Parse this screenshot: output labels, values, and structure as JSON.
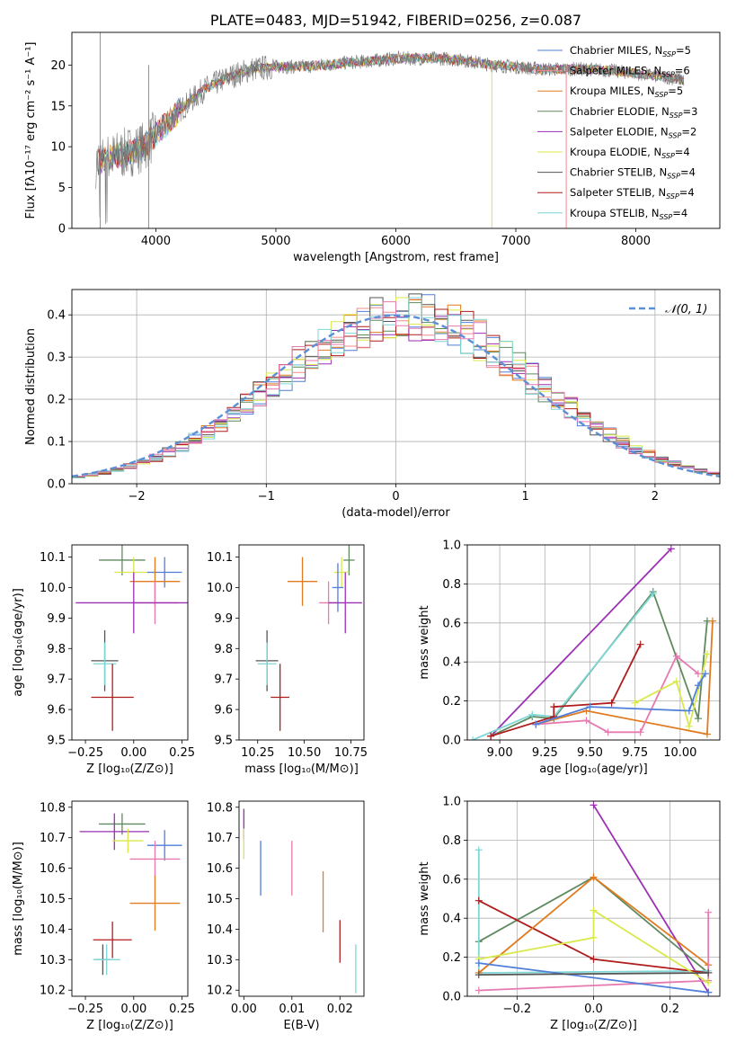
{
  "colors": {
    "chabrier_miles": "#4f7fd9",
    "salpeter_miles": "#ef8b8b",
    "kroupa_miles": "#e07b1f",
    "chabrier_elodie": "#5f8a5f",
    "salpeter_elodie": "#9b30b5",
    "kroupa_elodie": "#d9e84a",
    "chabrier_stelib": "#555555",
    "salpeter_stelib": "#b01c1c",
    "kroupa_stelib": "#7fd6d6",
    "pink": "#e67ab0",
    "normal_curve": "#5b8fd6",
    "grid": "#b0b0b0"
  },
  "chart_data": [
    {
      "id": "spectrum",
      "type": "line",
      "title": "PLATE=0483, MJD=51942, FIBERID=0256, z=0.087",
      "xlabel": "wavelength [Angstrom, rest frame]",
      "ylabel": "Flux [fλ10⁻¹⁷ erg cm⁻² s⁻¹ A⁻¹]",
      "xlim": [
        3300,
        8700
      ],
      "ylim": [
        0,
        24
      ],
      "xticks": [
        "4000",
        "5000",
        "6000",
        "7000",
        "8000"
      ],
      "yticks": [
        "0",
        "5",
        "10",
        "15",
        "20"
      ],
      "grid": false,
      "legend_position": "top-right",
      "legend": [
        {
          "label": "Chabrier MILES, N",
          "sub": "SSP",
          "tail": "=5",
          "color": "#4f7fd9"
        },
        {
          "label": "Salpeter MILES, N",
          "sub": "SSP",
          "tail": "=6",
          "color": "#ef8b8b"
        },
        {
          "label": "Kroupa MILES, N",
          "sub": "SSP",
          "tail": "=5",
          "color": "#e07b1f"
        },
        {
          "label": "Chabrier ELODIE, N",
          "sub": "SSP",
          "tail": "=3",
          "color": "#5f8a5f"
        },
        {
          "label": "Salpeter ELODIE, N",
          "sub": "SSP",
          "tail": "=2",
          "color": "#9b30b5"
        },
        {
          "label": "Kroupa ELODIE, N",
          "sub": "SSP",
          "tail": "=4",
          "color": "#d9e84a"
        },
        {
          "label": "Chabrier STELIB, N",
          "sub": "SSP",
          "tail": "=4",
          "color": "#555555"
        },
        {
          "label": "Salpeter STELIB, N",
          "sub": "SSP",
          "tail": "=4",
          "color": "#b01c1c"
        },
        {
          "label": "Kroupa STELIB, N",
          "sub": "SSP",
          "tail": "=4",
          "color": "#7fd6d6"
        }
      ],
      "continuum": {
        "x": [
          3500,
          3700,
          3900,
          4000,
          4100,
          4200,
          4400,
          4600,
          4800,
          5000,
          5200,
          5400,
          5600,
          5800,
          6000,
          6200,
          6400,
          6600,
          6800,
          7000,
          7200,
          7400,
          7600,
          7800,
          8000,
          8200,
          8400
        ],
        "y": [
          8,
          9,
          10,
          11.5,
          13,
          14.5,
          17,
          18.5,
          19.5,
          19.8,
          19.8,
          20,
          20.3,
          20.5,
          20.8,
          20.8,
          20.8,
          20.5,
          20,
          19.8,
          19.5,
          19.5,
          19.5,
          19.3,
          19,
          18.6,
          18.2
        ]
      },
      "spikes": [
        {
          "x": 3940,
          "color": "#e07b1f"
        },
        {
          "x": 6800,
          "color": "#d9e84a"
        },
        {
          "x": 7420,
          "color": "#ef8b8b"
        }
      ]
    },
    {
      "id": "residuals",
      "type": "histogram",
      "xlabel": "(data-model)/error",
      "ylabel": "Normed distribution",
      "xlim": [
        -2.5,
        2.5
      ],
      "ylim": [
        0,
        0.46
      ],
      "xticks": [
        "−2",
        "−1",
        "0",
        "1",
        "2"
      ],
      "yticks": [
        "0.0",
        "0.1",
        "0.2",
        "0.3",
        "0.4"
      ],
      "grid": true,
      "legend_position": "top-right",
      "legend": [
        {
          "label": "𝒩(0, 1)",
          "color": "#5b8fd6"
        }
      ],
      "bin_width": 0.1
    },
    {
      "id": "age_vs_Z",
      "type": "scatter",
      "xlabel": "Z [log₁₀(Z/Z⊙)]",
      "ylabel": "age  [log₁₀(age/yr)]",
      "xlim": [
        -0.32,
        0.28
      ],
      "ylim": [
        9.5,
        10.14
      ],
      "xticks": [
        "−0.25",
        "0.00",
        "0.25"
      ],
      "yticks": [
        "9.5",
        "9.6",
        "9.7",
        "9.8",
        "9.9",
        "10.0",
        "10.1"
      ],
      "points": [
        {
          "x": -0.06,
          "xerr": 0.12,
          "y": 10.09,
          "yerr": 0.05,
          "color": "#5f8a5f"
        },
        {
          "x": 0.0,
          "xerr": 0.1,
          "y": 10.05,
          "yerr": 0.05,
          "color": "#d9e84a"
        },
        {
          "x": 0.16,
          "xerr": 0.09,
          "y": 10.05,
          "yerr": 0.05,
          "color": "#4f7fd9"
        },
        {
          "x": 0.11,
          "xerr": 0.13,
          "y": 10.02,
          "yerr": 0.08,
          "color": "#e07b1f"
        },
        {
          "x": 0.11,
          "xerr": 0.12,
          "y": 9.95,
          "yerr": 0.07,
          "color": "#e67ab0"
        },
        {
          "x": -0.0,
          "xerr": 0.3,
          "y": 9.95,
          "yerr": 0.1,
          "color": "#9b30b5"
        },
        {
          "x": -0.15,
          "xerr": 0.07,
          "y": 9.76,
          "yerr": 0.1,
          "color": "#555555"
        },
        {
          "x": -0.15,
          "xerr": 0.06,
          "y": 9.75,
          "yerr": 0.07,
          "color": "#7fd6d6"
        },
        {
          "x": -0.11,
          "xerr": 0.11,
          "y": 9.64,
          "yerr": 0.11,
          "color": "#b01c1c"
        }
      ]
    },
    {
      "id": "age_vs_mass",
      "type": "scatter",
      "xlabel": "mass [log₁₀(M/M⊙)]",
      "xlim": [
        10.15,
        10.82
      ],
      "ylim": [
        9.5,
        10.14
      ],
      "xticks": [
        "10.25",
        "10.50",
        "10.75"
      ],
      "yticks": [
        "9.5",
        "9.6",
        "9.7",
        "9.8",
        "9.9",
        "10.0",
        "10.1"
      ],
      "points": [
        {
          "x": 10.74,
          "xerr": 0.03,
          "y": 10.09,
          "yerr": 0.05,
          "color": "#5f8a5f"
        },
        {
          "x": 10.7,
          "xerr": 0.04,
          "y": 10.05,
          "yerr": 0.05,
          "color": "#d9e84a"
        },
        {
          "x": 10.68,
          "xerr": 0.03,
          "y": 10.0,
          "yerr": 0.08,
          "color": "#4f7fd9"
        },
        {
          "x": 10.49,
          "xerr": 0.08,
          "y": 10.02,
          "yerr": 0.08,
          "color": "#e07b1f"
        },
        {
          "x": 10.63,
          "xerr": 0.05,
          "y": 9.95,
          "yerr": 0.07,
          "color": "#e67ab0"
        },
        {
          "x": 10.72,
          "xerr": 0.09,
          "y": 9.95,
          "yerr": 0.1,
          "color": "#9b30b5"
        },
        {
          "x": 10.3,
          "xerr": 0.06,
          "y": 9.76,
          "yerr": 0.1,
          "color": "#555555"
        },
        {
          "x": 10.3,
          "xerr": 0.05,
          "y": 9.75,
          "yerr": 0.07,
          "color": "#7fd6d6"
        },
        {
          "x": 10.37,
          "xerr": 0.05,
          "y": 9.64,
          "yerr": 0.11,
          "color": "#b01c1c"
        }
      ]
    },
    {
      "id": "weight_vs_age",
      "type": "line",
      "xlabel": "age  [log₁₀(age/yr)]",
      "ylabel": "mass weight",
      "xlim": [
        8.82,
        10.22
      ],
      "ylim": [
        0,
        1.0
      ],
      "xticks": [
        "9.00",
        "9.25",
        "9.50",
        "9.75",
        "10.00"
      ],
      "yticks": [
        "0.0",
        "0.2",
        "0.4",
        "0.6",
        "0.8",
        "1.0"
      ],
      "grid": true,
      "series": [
        {
          "color": "#9b30b5",
          "x": [
            8.95,
            9.95
          ],
          "y": [
            0.02,
            0.98
          ]
        },
        {
          "color": "#5f8a5f",
          "x": [
            8.95,
            9.18,
            9.3,
            9.85,
            10.1,
            10.15
          ],
          "y": [
            0.02,
            0.12,
            0.11,
            0.76,
            0.11,
            0.61
          ]
        },
        {
          "color": "#7fd6d6",
          "x": [
            8.85,
            9.18,
            9.3,
            9.85
          ],
          "y": [
            0.0,
            0.13,
            0.12,
            0.75
          ]
        },
        {
          "color": "#b01c1c",
          "x": [
            8.95,
            9.3,
            9.3,
            9.62,
            9.78
          ],
          "y": [
            0.02,
            0.12,
            0.17,
            0.19,
            0.49
          ]
        },
        {
          "color": "#e07b1f",
          "x": [
            9.2,
            9.48,
            10.15,
            10.18
          ],
          "y": [
            0.08,
            0.15,
            0.03,
            0.61
          ]
        },
        {
          "color": "#e67ab0",
          "x": [
            9.2,
            9.48,
            9.6,
            9.78,
            9.98,
            10.1
          ],
          "y": [
            0.08,
            0.1,
            0.04,
            0.04,
            0.43,
            0.34
          ]
        },
        {
          "color": "#d9e84a",
          "x": [
            9.75,
            9.98,
            10.05,
            10.15
          ],
          "y": [
            0.19,
            0.3,
            0.07,
            0.44
          ]
        },
        {
          "color": "#4f7fd9",
          "x": [
            9.2,
            9.5,
            10.05,
            10.1,
            10.14
          ],
          "y": [
            0.08,
            0.17,
            0.15,
            0.28,
            0.34
          ]
        }
      ]
    },
    {
      "id": "mass_vs_Z",
      "type": "scatter",
      "xlabel": "Z [log₁₀(Z/Z⊙)]",
      "ylabel": "mass [log₁₀(M/M⊙)]",
      "xlim": [
        -0.32,
        0.28
      ],
      "ylim": [
        10.18,
        10.82
      ],
      "xticks": [
        "−0.25",
        "0.00",
        "0.25"
      ],
      "yticks": [
        "10.2",
        "10.3",
        "10.4",
        "10.5",
        "10.6",
        "10.7",
        "10.8"
      ],
      "points": [
        {
          "x": -0.06,
          "xerr": 0.12,
          "y": 10.745,
          "yerr": 0.035,
          "color": "#5f8a5f"
        },
        {
          "x": -0.1,
          "xerr": 0.18,
          "y": 10.72,
          "yerr": 0.06,
          "color": "#9b30b5"
        },
        {
          "x": -0.03,
          "xerr": 0.08,
          "y": 10.69,
          "yerr": 0.04,
          "color": "#d9e84a"
        },
        {
          "x": 0.16,
          "xerr": 0.09,
          "y": 10.675,
          "yerr": 0.05,
          "color": "#4f7fd9"
        },
        {
          "x": 0.11,
          "xerr": 0.13,
          "y": 10.63,
          "yerr": 0.06,
          "color": "#e67ab0"
        },
        {
          "x": 0.11,
          "xerr": 0.13,
          "y": 10.485,
          "yerr": 0.09,
          "color": "#e07b1f"
        },
        {
          "x": -0.11,
          "xerr": 0.1,
          "y": 10.365,
          "yerr": 0.06,
          "color": "#b01c1c"
        },
        {
          "x": -0.16,
          "xerr": 0.04,
          "y": 10.3,
          "yerr": 0.05,
          "color": "#555555"
        },
        {
          "x": -0.14,
          "xerr": 0.07,
          "y": 10.3,
          "yerr": 0.05,
          "color": "#7fd6d6"
        }
      ]
    },
    {
      "id": "mass_vs_ebv",
      "type": "scatter",
      "xlabel": "E(B-V)",
      "xlim": [
        -0.001,
        0.025
      ],
      "ylim": [
        10.18,
        10.82
      ],
      "xticks": [
        "0.00",
        "0.01",
        "0.02"
      ],
      "yticks": [
        "10.2",
        "10.3",
        "10.4",
        "10.5",
        "10.6",
        "10.7",
        "10.8"
      ],
      "points": [
        {
          "x": 0.0,
          "xerr": 0,
          "y": 10.745,
          "yerr": 0.05,
          "color": "#9b30b5"
        },
        {
          "x": 0.0,
          "xerr": 0,
          "y": 10.68,
          "yerr": 0.05,
          "color": "#d9e84a"
        },
        {
          "x": 0.0035,
          "xerr": 0,
          "y": 10.6,
          "yerr": 0.09,
          "color": "#4f7fd9"
        },
        {
          "x": 0.01,
          "xerr": 0,
          "y": 10.6,
          "yerr": 0.09,
          "color": "#e67ab0"
        },
        {
          "x": 0.0165,
          "xerr": 0,
          "y": 10.49,
          "yerr": 0.1,
          "color": "#e07b1f"
        },
        {
          "x": 0.02,
          "xerr": 0,
          "y": 10.36,
          "yerr": 0.07,
          "color": "#b01c1c"
        },
        {
          "x": 0.0233,
          "xerr": 0,
          "y": 10.27,
          "yerr": 0.08,
          "color": "#7fd6d6"
        }
      ]
    },
    {
      "id": "weight_vs_Z",
      "type": "line",
      "xlabel": "Z [log₁₀(Z/Z⊙)]",
      "ylabel": "mass weight",
      "xlim": [
        -0.33,
        0.33
      ],
      "ylim": [
        0,
        1.0
      ],
      "xticks": [
        "−0.2",
        "0.0",
        "0.2"
      ],
      "yticks": [
        "0.0",
        "0.2",
        "0.4",
        "0.6",
        "0.8",
        "1.0"
      ],
      "grid": true,
      "series": [
        {
          "color": "#9b30b5",
          "x": [
            0.0,
            0.3
          ],
          "y": [
            0.98,
            0.02
          ]
        },
        {
          "color": "#5f8a5f",
          "x": [
            -0.3,
            0.0,
            0.3
          ],
          "y": [
            0.28,
            0.61,
            0.12
          ]
        },
        {
          "color": "#7fd6d6",
          "x": [
            -0.3,
            -0.3,
            0.3
          ],
          "y": [
            0.75,
            0.12,
            0.13
          ]
        },
        {
          "color": "#b01c1c",
          "x": [
            -0.3,
            0.0,
            0.3
          ],
          "y": [
            0.49,
            0.19,
            0.12
          ]
        },
        {
          "color": "#e07b1f",
          "x": [
            -0.3,
            0.0,
            0.3
          ],
          "y": [
            0.12,
            0.61,
            0.16
          ]
        },
        {
          "color": "#e67ab0",
          "x": [
            -0.3,
            0.3,
            0.3
          ],
          "y": [
            0.03,
            0.08,
            0.43
          ]
        },
        {
          "color": "#d9e84a",
          "x": [
            -0.3,
            0.0,
            0.0,
            0.3
          ],
          "y": [
            0.19,
            0.3,
            0.44,
            0.07
          ]
        },
        {
          "color": "#4f7fd9",
          "x": [
            -0.3,
            0.3
          ],
          "y": [
            0.17,
            0.02
          ]
        },
        {
          "color": "#555555",
          "x": [
            -0.3,
            0.3
          ],
          "y": [
            0.11,
            0.12
          ]
        }
      ]
    }
  ]
}
